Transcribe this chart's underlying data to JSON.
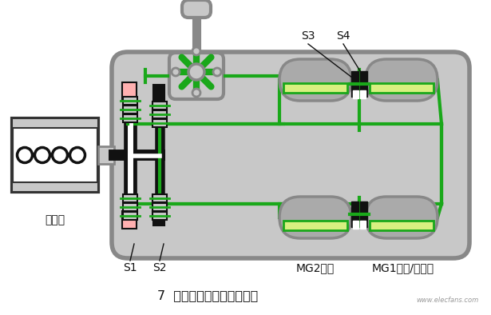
{
  "bg_color": "#ffffff",
  "housing_fill": "#c8c8c8",
  "housing_edge": "#888888",
  "green": "#1aa81a",
  "green_lw": 3.0,
  "light_green": "#d8f080",
  "motor_gray": "#aaaaaa",
  "motor_edge": "#888888",
  "black": "#111111",
  "pink": "#ffb0b0",
  "white": "#ffffff",
  "engine_fill": "#ffffff",
  "engine_edge": "#333333",
  "dark_shaft": "#555555",
  "title": "7  双电机多挡位纯电动驱动",
  "label_engine": "发动机",
  "label_s1": "S1",
  "label_s2": "S2",
  "label_s3": "S3",
  "label_s4": "S4",
  "label_mg2": "MG2电机",
  "label_mg1": "MG1电机/发电机",
  "watermark": "www.elecfans.com"
}
